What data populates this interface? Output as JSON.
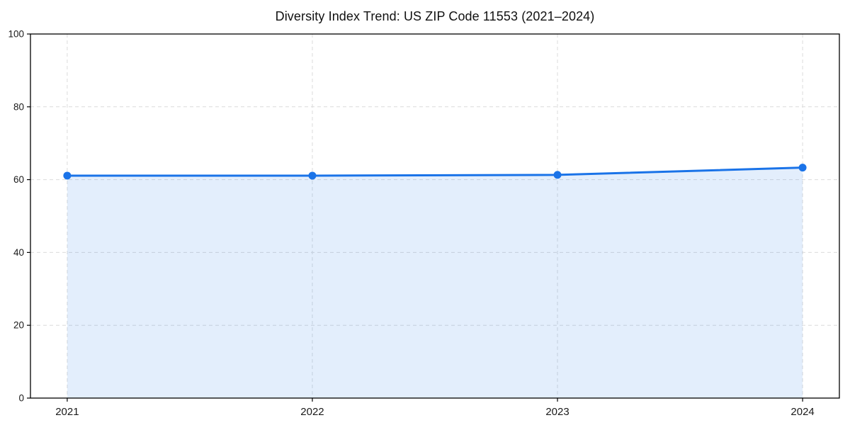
{
  "chart_data": {
    "type": "area",
    "title": "Diversity Index Trend: US ZIP Code 11553 (2021–2024)",
    "categories": [
      "2021",
      "2022",
      "2023",
      "2024"
    ],
    "values": [
      61.1,
      61.1,
      61.3,
      63.3
    ],
    "series_label": "Diversity Index",
    "xlabel": "",
    "ylabel": "",
    "ylim": [
      0,
      100
    ],
    "yticks": [
      0,
      20,
      40,
      60,
      80,
      100
    ],
    "grid": true,
    "grid_style": "dashed",
    "legend_position": "none",
    "marker": "circle",
    "colors": {
      "line": "#1a73e8",
      "marker": "#1a73e8",
      "fill": "#1a73e8",
      "fill_opacity": 0.12,
      "grid": "#dcdcdc",
      "spine": "#000000",
      "tick_label": "#1a1a1a",
      "background": "#ffffff"
    }
  }
}
